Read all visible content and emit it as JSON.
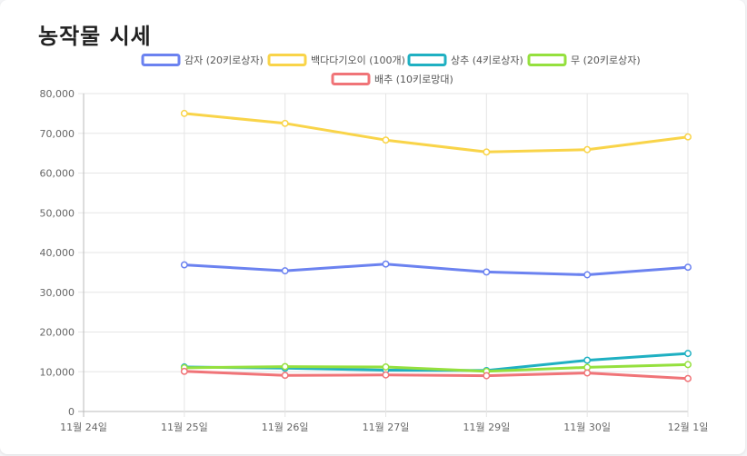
{
  "page": {
    "title": "농작물 시세"
  },
  "chart_data": {
    "type": "line",
    "title": "농작물 시세",
    "x": [
      "11월 24일",
      "11월 25일",
      "11월 26일",
      "11월 27일",
      "11월 29일",
      "11월 30일",
      "12월 1일"
    ],
    "ylim": [
      0,
      80000
    ],
    "yticks": [
      "0",
      "10,000",
      "20,000",
      "30,000",
      "40,000",
      "50,000",
      "60,000",
      "70,000",
      "80,000"
    ],
    "grid": true,
    "legend": "top",
    "series": [
      {
        "name": "감자 (20키로상자)",
        "color": "#6b82f0",
        "values": [
          null,
          36900,
          35400,
          37100,
          35100,
          34400,
          36300
        ]
      },
      {
        "name": "백다다기오이 (100개)",
        "color": "#f9d449",
        "values": [
          null,
          75000,
          72500,
          68300,
          65300,
          65900,
          69100
        ]
      },
      {
        "name": "상추 (4키로상자)",
        "color": "#1fb0c2",
        "values": [
          null,
          11200,
          10900,
          10400,
          10300,
          12900,
          14600
        ]
      },
      {
        "name": "무 (20키로상자)",
        "color": "#95e03e",
        "values": [
          null,
          11000,
          11300,
          11200,
          10100,
          11100,
          11800
        ]
      },
      {
        "name": "배추 (10키로망대)",
        "color": "#f07478",
        "values": [
          null,
          10100,
          9100,
          9200,
          9000,
          9700,
          8300
        ]
      }
    ]
  }
}
